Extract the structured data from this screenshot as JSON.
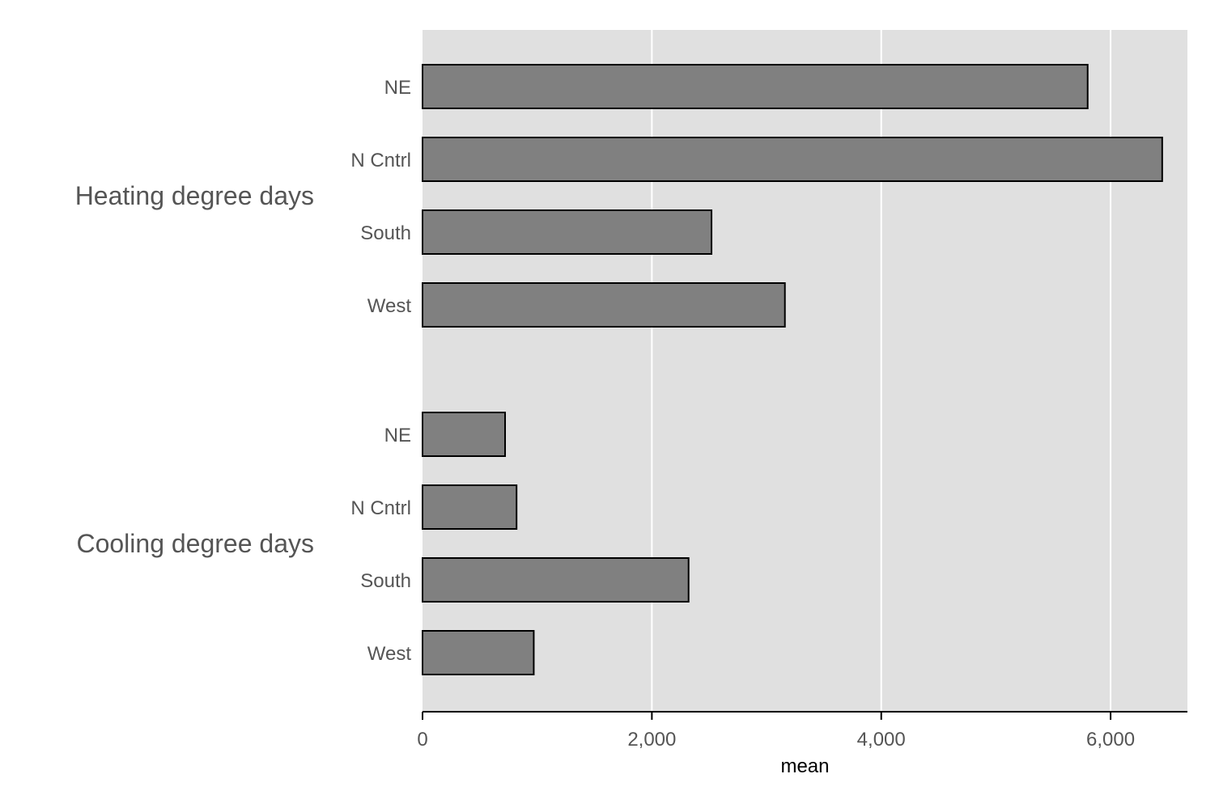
{
  "chart_data": {
    "type": "bar",
    "orientation": "horizontal",
    "xlabel": "mean",
    "xlim": [
      0,
      6670
    ],
    "xticks": [
      0,
      2000,
      4000,
      6000
    ],
    "xtick_labels": [
      "0",
      "2,000",
      "4,000",
      "6,000"
    ],
    "grid": true,
    "groups": [
      {
        "name": "Heating degree days",
        "categories": [
          "NE",
          "N Cntrl",
          "South",
          "West"
        ],
        "values": [
          5800,
          6450,
          2520,
          3160
        ]
      },
      {
        "name": "Cooling degree days",
        "categories": [
          "NE",
          "N Cntrl",
          "South",
          "West"
        ],
        "values": [
          720,
          820,
          2320,
          970
        ]
      }
    ],
    "colors": {
      "bar_fill": "#808080",
      "bar_stroke": "#000000",
      "plot_background": "#e0e0e0",
      "gridline": "#ffffff",
      "label_text": "#555555"
    }
  }
}
